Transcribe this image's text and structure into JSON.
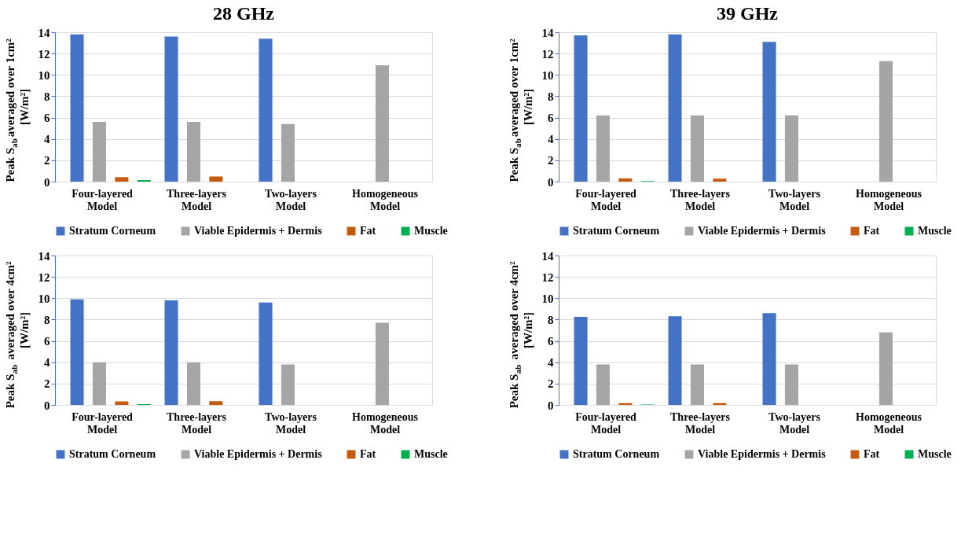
{
  "chart_data": [
    {
      "type": "bar",
      "title": "28 GHz",
      "ylabel": "Peak S$_{ab}$averaged over 1cm² [W/m²]",
      "categories": [
        "Four-layered Model",
        "Three-layers Model",
        "Two-layers Model",
        "Homogeneous Model"
      ],
      "ylim": [
        0,
        14
      ],
      "yticks": [
        0,
        2,
        4,
        6,
        8,
        10,
        12,
        14
      ],
      "grid": "y",
      "legend": "bottom",
      "series": [
        {
          "name": "Stratum Corneum",
          "color": "#4472c4",
          "values": [
            13.8,
            13.6,
            13.4,
            null
          ]
        },
        {
          "name": "Viable Epidermis + Dermis",
          "color": "#a5a5a5",
          "values": [
            5.6,
            5.6,
            5.4,
            10.9
          ]
        },
        {
          "name": "Fat",
          "color": "#c55a11",
          "values": [
            0.42,
            0.48,
            null,
            null
          ]
        },
        {
          "name": "Muscle",
          "color": "#00b050",
          "values": [
            0.15,
            null,
            null,
            null
          ]
        }
      ]
    },
    {
      "type": "bar",
      "title": "39 GHz",
      "ylabel": "Peak S$_{ab}$averaged over 1cm² [W/m²]",
      "categories": [
        "Four-layered Model",
        "Three-layers Model",
        "Two-layers Model",
        "Homogeneous Model"
      ],
      "ylim": [
        0,
        14
      ],
      "yticks": [
        0,
        2,
        4,
        6,
        8,
        10,
        12,
        14
      ],
      "grid": "y",
      "legend": "bottom",
      "series": [
        {
          "name": "Stratum Corneum",
          "color": "#4472c4",
          "values": [
            13.7,
            13.8,
            13.1,
            null
          ]
        },
        {
          "name": "Viable Epidermis + Dermis",
          "color": "#a5a5a5",
          "values": [
            6.2,
            6.2,
            6.2,
            11.3
          ]
        },
        {
          "name": "Fat",
          "color": "#c55a11",
          "values": [
            0.3,
            0.28,
            null,
            null
          ]
        },
        {
          "name": "Muscle",
          "color": "#00b050",
          "values": [
            0.06,
            null,
            null,
            null
          ]
        }
      ]
    },
    {
      "type": "bar",
      "ylabel": "Peak S$_{ab}$ averaged over 4cm² [W/m²]",
      "categories": [
        "Four-layered Model",
        "Three-layers Model",
        "Two-layers Model",
        "Homogeneous Model"
      ],
      "ylim": [
        0,
        14
      ],
      "yticks": [
        0,
        2,
        4,
        6,
        8,
        10,
        12,
        14
      ],
      "grid": "y",
      "legend": "bottom",
      "series": [
        {
          "name": "Stratum Corneum",
          "color": "#4472c4",
          "values": [
            9.9,
            9.8,
            9.6,
            null
          ]
        },
        {
          "name": "Viable Epidermis + Dermis",
          "color": "#a5a5a5",
          "values": [
            4.0,
            4.0,
            3.8,
            7.7
          ]
        },
        {
          "name": "Fat",
          "color": "#c55a11",
          "values": [
            0.33,
            0.35,
            null,
            null
          ]
        },
        {
          "name": "Muscle",
          "color": "#00b050",
          "values": [
            0.08,
            null,
            null,
            null
          ]
        }
      ]
    },
    {
      "type": "bar",
      "ylabel": "Peak S$_{ab}$ averaged over 4cm² [W/m²]",
      "categories": [
        "Four-layered Model",
        "Three-layers Model",
        "Two-layers Model",
        "Homogeneous Model"
      ],
      "ylim": [
        0,
        14
      ],
      "yticks": [
        0,
        2,
        4,
        6,
        8,
        10,
        12,
        14
      ],
      "grid": "y",
      "legend": "bottom",
      "series": [
        {
          "name": "Stratum Corneum",
          "color": "#4472c4",
          "values": [
            8.25,
            8.3,
            8.6,
            null
          ]
        },
        {
          "name": "Viable Epidermis + Dermis",
          "color": "#a5a5a5",
          "values": [
            3.8,
            3.8,
            3.8,
            6.8
          ]
        },
        {
          "name": "Fat",
          "color": "#c55a11",
          "values": [
            0.17,
            0.17,
            null,
            null
          ]
        },
        {
          "name": "Muscle",
          "color": "#00b050",
          "values": [
            0.04,
            null,
            null,
            null
          ]
        }
      ]
    }
  ]
}
